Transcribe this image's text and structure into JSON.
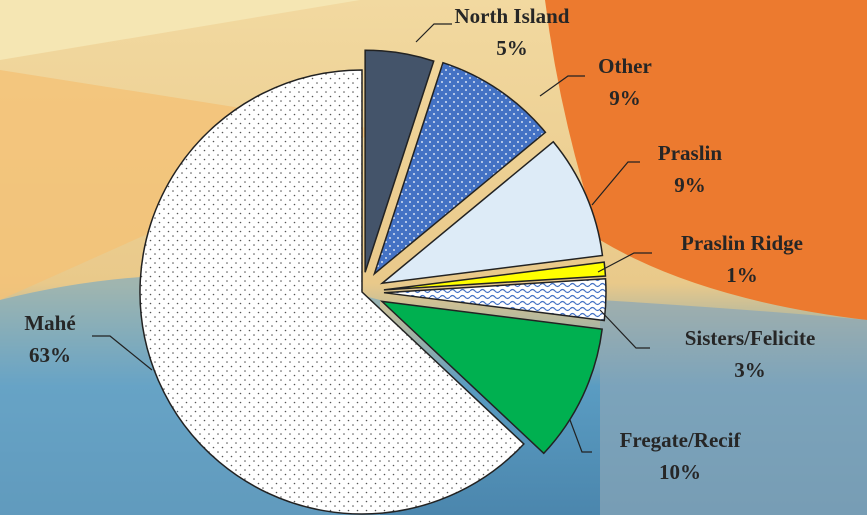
{
  "chart_data": {
    "type": "pie",
    "categories": [
      "North Island",
      "Other",
      "Praslin",
      "Praslin Ridge",
      "Sisters/Felicite",
      "Fregate/Recif",
      "Mahé"
    ],
    "values": [
      5,
      9,
      9,
      1,
      3,
      10,
      63
    ],
    "value_labels": [
      "5%",
      "9%",
      "9%",
      "1%",
      "3%",
      "10%",
      "63%"
    ],
    "colors": [
      "#44546a",
      "#4472c4",
      "#ddebf7",
      "#ffff00",
      "#ffffff",
      "#00b050",
      "#ffffff"
    ]
  }
}
